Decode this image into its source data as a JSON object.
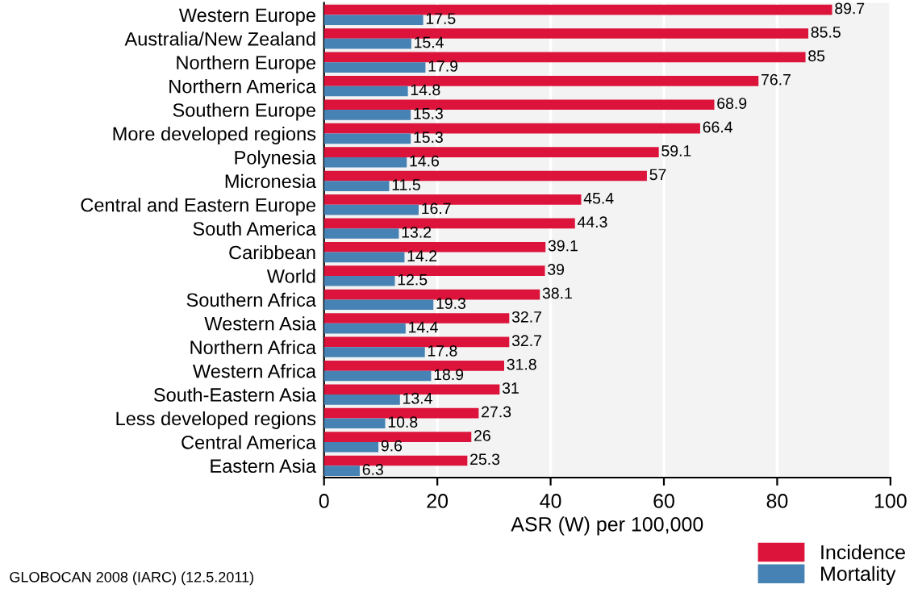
{
  "chart_data": {
    "type": "bar",
    "orientation": "horizontal",
    "xlabel": "ASR (W) per 100,000",
    "categories": [
      "Western Europe",
      "Australia/New Zealand",
      "Northern Europe",
      "Northern America",
      "Southern Europe",
      "More developed regions",
      "Polynesia",
      "Micronesia",
      "Central and Eastern Europe",
      "South America",
      "Caribbean",
      "World",
      "Southern Africa",
      "Western Asia",
      "Northern Africa",
      "Western Africa",
      "South-Eastern Asia",
      "Less developed regions",
      "Central America",
      "Eastern Asia"
    ],
    "series": [
      {
        "name": "Incidence",
        "color": "#dc143c",
        "values": [
          89.7,
          85.5,
          85,
          76.7,
          68.9,
          66.4,
          59.1,
          57,
          45.4,
          44.3,
          39.1,
          39,
          38.1,
          32.7,
          32.7,
          31.8,
          31,
          27.3,
          26,
          25.3
        ]
      },
      {
        "name": "Mortality",
        "color": "#4682b4",
        "values": [
          17.5,
          15.4,
          17.9,
          14.8,
          15.3,
          15.3,
          14.6,
          11.5,
          16.7,
          13.2,
          14.2,
          12.5,
          19.3,
          14.4,
          17.8,
          18.9,
          13.4,
          10.8,
          9.6,
          6.3
        ]
      }
    ],
    "xlim": [
      0,
      100
    ],
    "xticks": [
      0,
      20,
      40,
      60,
      80,
      100
    ],
    "grid": "x",
    "legend": "bottom right",
    "data_labels": true,
    "annotations": [
      "GLOBOCAN 2008 (IARC) (12.5.2011)"
    ]
  }
}
